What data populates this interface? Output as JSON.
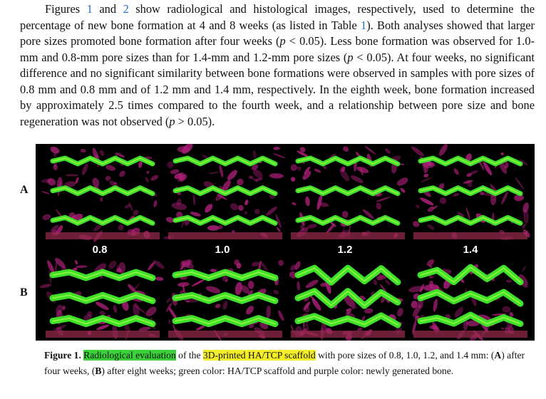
{
  "paragraph": {
    "s1_a": "Figures ",
    "ref1": "1",
    "s1_b": " and ",
    "ref2": "2",
    "s1_c": " show radiological and histological images, respectively, used to determine the percentage of new bone formation at 4 and 8 weeks (as listed in Table ",
    "ref3": "1",
    "s1_d": "). Both analyses showed that larger pore sizes promoted bone formation after four weeks (",
    "p1": "p",
    "s1_e": " < 0.05). Less bone formation was observed for 1.0-mm and 0.8-mm pore sizes than for 1.4-mm and 1.2-mm pore sizes (",
    "p2": "p",
    "s1_f": " < 0.05). At four weeks, no significant difference and no significant similarity between bone formations were observed in samples with pore sizes of 0.8 mm and 0.8 mm and of 1.2 mm and 1.4 mm, respectively. In the eighth week, bone formation increased by approximately 2.5 times compared to the fourth week, and a relationship between pore size and bone regeneration was not observed (",
    "p3": "p",
    "s1_g": " > 0.05)."
  },
  "figure": {
    "row_labels": [
      "A",
      "B"
    ],
    "pore_sizes": [
      "0.8",
      "1.0",
      "1.2",
      "1.4"
    ],
    "colors": {
      "scaffold": "#3ee02a",
      "bone": "#b0207a",
      "background": "#000000"
    }
  },
  "caption": {
    "label": "Figure 1.",
    "t1": " ",
    "hl1": "Radiological evaluation",
    "t2": " of the ",
    "hl2": "3D-printed HA/TCP scaffold",
    "t3": " with pore sizes of 0.8, 1.0, 1.2, and 1.4 mm: (",
    "A": "A",
    "t4": ") after four weeks, (",
    "B": "B",
    "t5": ") after eight weeks; green color: HA/TCP scaffold and purple color: newly generated bone."
  }
}
